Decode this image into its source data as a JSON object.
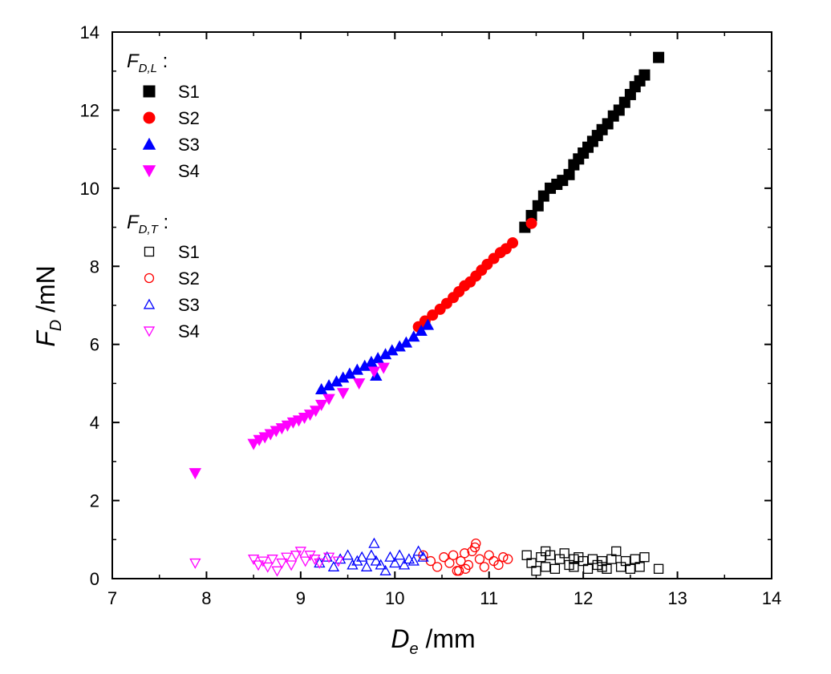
{
  "chart_data": {
    "type": "scatter",
    "xlabel": {
      "main": "D",
      "sub": "e",
      "unit": " /mm"
    },
    "ylabel": {
      "main": "F",
      "sub": "D",
      "unit": " /mN"
    },
    "xlim": [
      7,
      14
    ],
    "ylim": [
      0,
      14
    ],
    "xticks": [
      "7",
      "8",
      "9",
      "10",
      "11",
      "12",
      "13",
      "14"
    ],
    "yticks": [
      "0",
      "2",
      "4",
      "6",
      "8",
      "10",
      "12",
      "14"
    ],
    "legend": {
      "placement": "top-left",
      "groups": [
        {
          "heading": {
            "main": "F",
            "sub": "D,L",
            "suffix": " :"
          },
          "filled": true
        },
        {
          "heading": {
            "main": "F",
            "sub": "D,T",
            "suffix": " :"
          },
          "filled": false
        }
      ]
    },
    "series": [
      {
        "name": "S1",
        "group": "longitudinal",
        "marker": "square",
        "filled": true,
        "color": "#000000",
        "x": [
          11.38,
          11.45,
          11.52,
          11.58,
          11.65,
          11.72,
          11.78,
          11.85,
          11.9,
          11.95,
          12.0,
          12.05,
          12.1,
          12.15,
          12.2,
          12.26,
          12.32,
          12.38,
          12.44,
          12.5,
          12.55,
          12.6,
          12.65,
          12.8
        ],
        "y": [
          9.0,
          9.3,
          9.55,
          9.8,
          10.0,
          10.1,
          10.2,
          10.35,
          10.6,
          10.75,
          10.9,
          11.05,
          11.2,
          11.35,
          11.5,
          11.65,
          11.85,
          12.0,
          12.2,
          12.4,
          12.6,
          12.75,
          12.9,
          13.35
        ]
      },
      {
        "name": "S2",
        "group": "longitudinal",
        "marker": "circle",
        "filled": true,
        "color": "#ff0000",
        "x": [
          10.25,
          10.32,
          10.4,
          10.48,
          10.55,
          10.62,
          10.68,
          10.74,
          10.8,
          10.86,
          10.92,
          10.98,
          11.05,
          11.12,
          11.18,
          11.25,
          11.45
        ],
        "y": [
          6.45,
          6.6,
          6.75,
          6.9,
          7.05,
          7.2,
          7.35,
          7.5,
          7.6,
          7.75,
          7.9,
          8.05,
          8.2,
          8.35,
          8.45,
          8.6,
          9.1
        ]
      },
      {
        "name": "S3",
        "group": "longitudinal",
        "marker": "triangle-up",
        "filled": true,
        "color": "#0000ff",
        "x": [
          9.22,
          9.3,
          9.38,
          9.45,
          9.52,
          9.6,
          9.68,
          9.75,
          9.82,
          9.9,
          9.97,
          10.05,
          10.12,
          10.2,
          10.28,
          10.35,
          9.8
        ],
        "y": [
          4.85,
          4.95,
          5.05,
          5.15,
          5.25,
          5.35,
          5.45,
          5.55,
          5.65,
          5.75,
          5.85,
          5.95,
          6.05,
          6.2,
          6.35,
          6.5,
          5.2
        ]
      },
      {
        "name": "S4",
        "group": "longitudinal",
        "marker": "triangle-down",
        "filled": true,
        "color": "#ff00ff",
        "x": [
          7.88,
          8.5,
          8.56,
          8.62,
          8.68,
          8.74,
          8.8,
          8.86,
          8.92,
          8.98,
          9.04,
          9.1,
          9.16,
          9.22,
          9.3,
          9.45,
          9.62,
          9.78,
          9.88
        ],
        "y": [
          2.7,
          3.45,
          3.55,
          3.62,
          3.7,
          3.78,
          3.85,
          3.92,
          4.0,
          4.05,
          4.12,
          4.2,
          4.3,
          4.45,
          4.6,
          4.75,
          5.0,
          5.3,
          5.4
        ]
      },
      {
        "name": "S1",
        "group": "transverse",
        "marker": "square",
        "filled": false,
        "color": "#000000",
        "x": [
          11.4,
          11.45,
          11.5,
          11.55,
          11.6,
          11.65,
          11.7,
          11.75,
          11.8,
          11.85,
          11.9,
          11.95,
          12.0,
          12.05,
          12.1,
          12.15,
          12.2,
          12.25,
          12.3,
          12.35,
          12.4,
          12.45,
          12.5,
          12.55,
          12.6,
          12.65,
          12.8,
          11.6,
          11.9,
          12.2
        ],
        "y": [
          0.6,
          0.4,
          0.2,
          0.55,
          0.3,
          0.6,
          0.25,
          0.5,
          0.65,
          0.35,
          0.3,
          0.55,
          0.45,
          0.25,
          0.5,
          0.35,
          0.45,
          0.25,
          0.5,
          0.7,
          0.3,
          0.45,
          0.25,
          0.5,
          0.3,
          0.55,
          0.25,
          0.7,
          0.5,
          0.3
        ]
      },
      {
        "name": "S2",
        "group": "transverse",
        "marker": "circle",
        "filled": false,
        "color": "#ff0000",
        "x": [
          10.3,
          10.38,
          10.45,
          10.52,
          10.58,
          10.62,
          10.66,
          10.7,
          10.74,
          10.78,
          10.82,
          10.86,
          10.9,
          10.95,
          11.0,
          11.05,
          11.1,
          11.15,
          11.2,
          10.68,
          10.75,
          10.85
        ],
        "y": [
          0.6,
          0.45,
          0.3,
          0.55,
          0.4,
          0.6,
          0.2,
          0.45,
          0.65,
          0.35,
          0.7,
          0.9,
          0.5,
          0.3,
          0.6,
          0.45,
          0.35,
          0.55,
          0.5,
          0.2,
          0.25,
          0.8
        ]
      },
      {
        "name": "S3",
        "group": "transverse",
        "marker": "triangle-up",
        "filled": false,
        "color": "#0000ff",
        "x": [
          9.2,
          9.28,
          9.35,
          9.42,
          9.5,
          9.55,
          9.6,
          9.65,
          9.7,
          9.75,
          9.8,
          9.85,
          9.9,
          9.95,
          10.0,
          10.05,
          10.1,
          10.15,
          10.2,
          10.25,
          10.3,
          9.78
        ],
        "y": [
          0.4,
          0.55,
          0.3,
          0.5,
          0.6,
          0.35,
          0.45,
          0.55,
          0.3,
          0.6,
          0.45,
          0.35,
          0.2,
          0.55,
          0.4,
          0.6,
          0.35,
          0.5,
          0.45,
          0.7,
          0.55,
          0.9
        ]
      },
      {
        "name": "S4",
        "group": "transverse",
        "marker": "triangle-down",
        "filled": false,
        "color": "#ff00ff",
        "x": [
          7.88,
          8.5,
          8.55,
          8.6,
          8.65,
          8.7,
          8.75,
          8.8,
          8.85,
          8.9,
          8.95,
          9.0,
          9.05,
          9.1,
          9.15,
          9.2,
          9.3,
          9.4
        ],
        "y": [
          0.4,
          0.5,
          0.35,
          0.45,
          0.3,
          0.5,
          0.2,
          0.4,
          0.55,
          0.35,
          0.6,
          0.7,
          0.45,
          0.6,
          0.5,
          0.4,
          0.55,
          0.45
        ]
      }
    ]
  }
}
